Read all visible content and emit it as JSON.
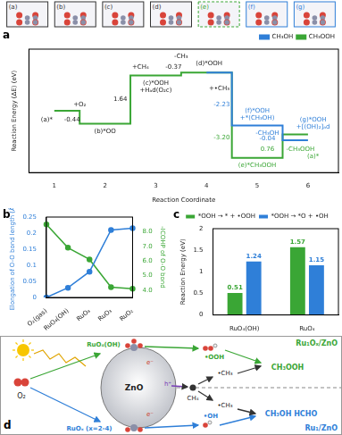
{
  "structures": [
    {
      "label": "(a)",
      "color": "#333333"
    },
    {
      "label": "(b)",
      "color": "#333333"
    },
    {
      "label": "(c)",
      "color": "#333333"
    },
    {
      "label": "(d)",
      "color": "#333333"
    },
    {
      "label": "(e)",
      "color": "#3aa635"
    },
    {
      "label": "(f)",
      "color": "#2f7fd8"
    },
    {
      "label": "(g)",
      "color": "#2f7fd8"
    }
  ],
  "chart_data": [
    {
      "panel_label": "a",
      "type": "line",
      "x_label": "Reaction Coordinate",
      "y_label": "Reaction Energy (ΔE) (eV)",
      "x": [
        1,
        2,
        3,
        4,
        5,
        6
      ],
      "xlim": [
        0.5,
        6.6
      ],
      "xticks": [
        1,
        2,
        3,
        4,
        5,
        6
      ],
      "ylim": [
        -2.1,
        2.1
      ],
      "tick_labels": "x",
      "grid": false,
      "legend": "top-right",
      "series": [
        {
          "name": "CH₃OH",
          "color": "#2f7fd8",
          "line_style": "solid",
          "values": [
            null,
            null,
            null,
            1.3,
            -0.5,
            -1.0
          ]
        },
        {
          "name": "CH₃OOH",
          "color": "#3aa635",
          "line_style": "solid",
          "values": [
            0,
            -0.44,
            1.2,
            1.3,
            -1.6,
            -0.8
          ]
        }
      ],
      "annotations": [
        {
          "text": "(a)*",
          "x": 0.85,
          "y": -0.3,
          "color": "#222222"
        },
        {
          "text": "+O₂",
          "x": 1.5,
          "y": 0.2,
          "color": "#222222"
        },
        {
          "text": "-0.44",
          "x": 1.35,
          "y": -0.3,
          "color": "#222222"
        },
        {
          "text": "(b)*OO",
          "x": 2.0,
          "y": -0.7,
          "color": "#222222"
        },
        {
          "text": "1.64",
          "x": 2.3,
          "y": 0.4,
          "color": "#222222"
        },
        {
          "text": "+CH₄",
          "x": 2.7,
          "y": 1.5,
          "color": "#222222"
        },
        {
          "text": "(c)*OOH",
          "x": 3.0,
          "y": 0.95,
          "color": "#222222"
        },
        {
          "text": "+Hₐd(O₂c)",
          "x": 3.0,
          "y": 0.7,
          "color": "#222222"
        },
        {
          "text": "-CH₃",
          "x": 3.5,
          "y": 1.85,
          "color": "#222222"
        },
        {
          "text": "-0.37",
          "x": 3.35,
          "y": 1.5,
          "color": "#222222"
        },
        {
          "text": "(d)*OOH",
          "x": 4.05,
          "y": 1.6,
          "color": "#222222"
        },
        {
          "text": "+•CH₃",
          "x": 4.25,
          "y": 0.75,
          "color": "#222222"
        },
        {
          "text": "-2.23",
          "x": 4.3,
          "y": 0.2,
          "color": "#2f7fd8"
        },
        {
          "text": "-3.20",
          "x": 4.3,
          "y": -0.9,
          "color": "#3aa635"
        },
        {
          "text": "(f)*OOH",
          "x": 5.0,
          "y": 0.0,
          "color": "#2f7fd8"
        },
        {
          "text": "+*(CH₃OH)",
          "x": 5.0,
          "y": -0.25,
          "color": "#2f7fd8"
        },
        {
          "text": "(e)*CH₃OOH",
          "x": 5.0,
          "y": -1.85,
          "color": "#3aa635"
        },
        {
          "text": "-CH₃OH",
          "x": 5.2,
          "y": -0.75,
          "color": "#2f7fd8"
        },
        {
          "text": "-0.04",
          "x": 5.2,
          "y": -0.95,
          "color": "#2f7fd8"
        },
        {
          "text": "0.76",
          "x": 5.2,
          "y": -1.3,
          "color": "#3aa635"
        },
        {
          "text": "(g)*OOH",
          "x": 6.1,
          "y": -0.3,
          "color": "#2f7fd8"
        },
        {
          "text": "+[(OH)₂]ₐd",
          "x": 6.1,
          "y": -0.55,
          "color": "#2f7fd8"
        },
        {
          "text": "-CH₃OOH",
          "x": 5.85,
          "y": -1.3,
          "color": "#3aa635"
        },
        {
          "text": "(a)*",
          "x": 6.1,
          "y": -1.55,
          "color": "#3aa635"
        }
      ]
    },
    {
      "panel_label": "b",
      "type": "line",
      "categories": [
        "O₂(gas)",
        "RuO₄(OH)",
        "RuO₄",
        "RuO₃",
        "RuO₂"
      ],
      "y_label": "Elongation of O-O bond length (Å)",
      "y2_label": "-ICOHP of O-O bond",
      "ylim": [
        0,
        0.25
      ],
      "yticks": [
        0,
        0.05,
        0.1,
        0.15,
        0.2,
        0.25
      ],
      "y2lim": [
        3.5,
        9.0
      ],
      "y2ticks": [
        {
          "value": 4,
          "label": "4.0"
        },
        {
          "value": 5,
          "label": "5.0"
        },
        {
          "value": 6,
          "label": "6.0"
        },
        {
          "value": 7,
          "label": "7.0"
        },
        {
          "value": 8,
          "label": "8.0"
        }
      ],
      "grid": false,
      "series": [
        {
          "name": "Elongation of O-O bond length",
          "color": "#2f7fd8",
          "marker": "circle",
          "values": [
            0.0,
            0.03,
            0.08,
            0.21,
            0.215
          ]
        },
        {
          "name": "-ICOHP of O-O bond",
          "color": "#3aa635",
          "marker": "circle",
          "axis": "y2",
          "values": [
            8.5,
            6.9,
            6.1,
            4.2,
            4.1
          ]
        }
      ]
    },
    {
      "panel_label": "c",
      "type": "bar",
      "categories": [
        "RuO₄(OH)",
        "RuO₄"
      ],
      "y_label": "Reaction Energy (eV)",
      "ylim": [
        0,
        2
      ],
      "yticks": [
        0,
        0.5,
        1,
        1.5,
        2
      ],
      "grid": false,
      "legend": "top",
      "data_labels": true,
      "series": [
        {
          "name": "*OOH → * + •OOH",
          "color": "#3aa635",
          "values": [
            0.51,
            1.57
          ]
        },
        {
          "name": "*OOH → *O + •OH",
          "color": "#2f7fd8",
          "values": [
            1.24,
            1.15
          ]
        }
      ]
    }
  ],
  "diagram": {
    "panel_label": "d",
    "light_catalyst": "Ru₁Oₓ/ZnO",
    "dark_catalyst": "Ru₁/ZnO",
    "support": "ZnO",
    "oxidant": "O₂",
    "methane": "CH₄",
    "upper_site": "RuO₄(OH)",
    "lower_site": "RuOₓ (x=2-4)",
    "upper_radical": "•OOH",
    "lower_radical": "•OH",
    "methyl": "•CH₃",
    "upper_product": "CH₃OOH",
    "lower_products": "CH₃OH HCHO",
    "electron": "e⁻",
    "hole": "h⁺",
    "upper_color": "#3aa635",
    "lower_color": "#2f7fd8"
  }
}
